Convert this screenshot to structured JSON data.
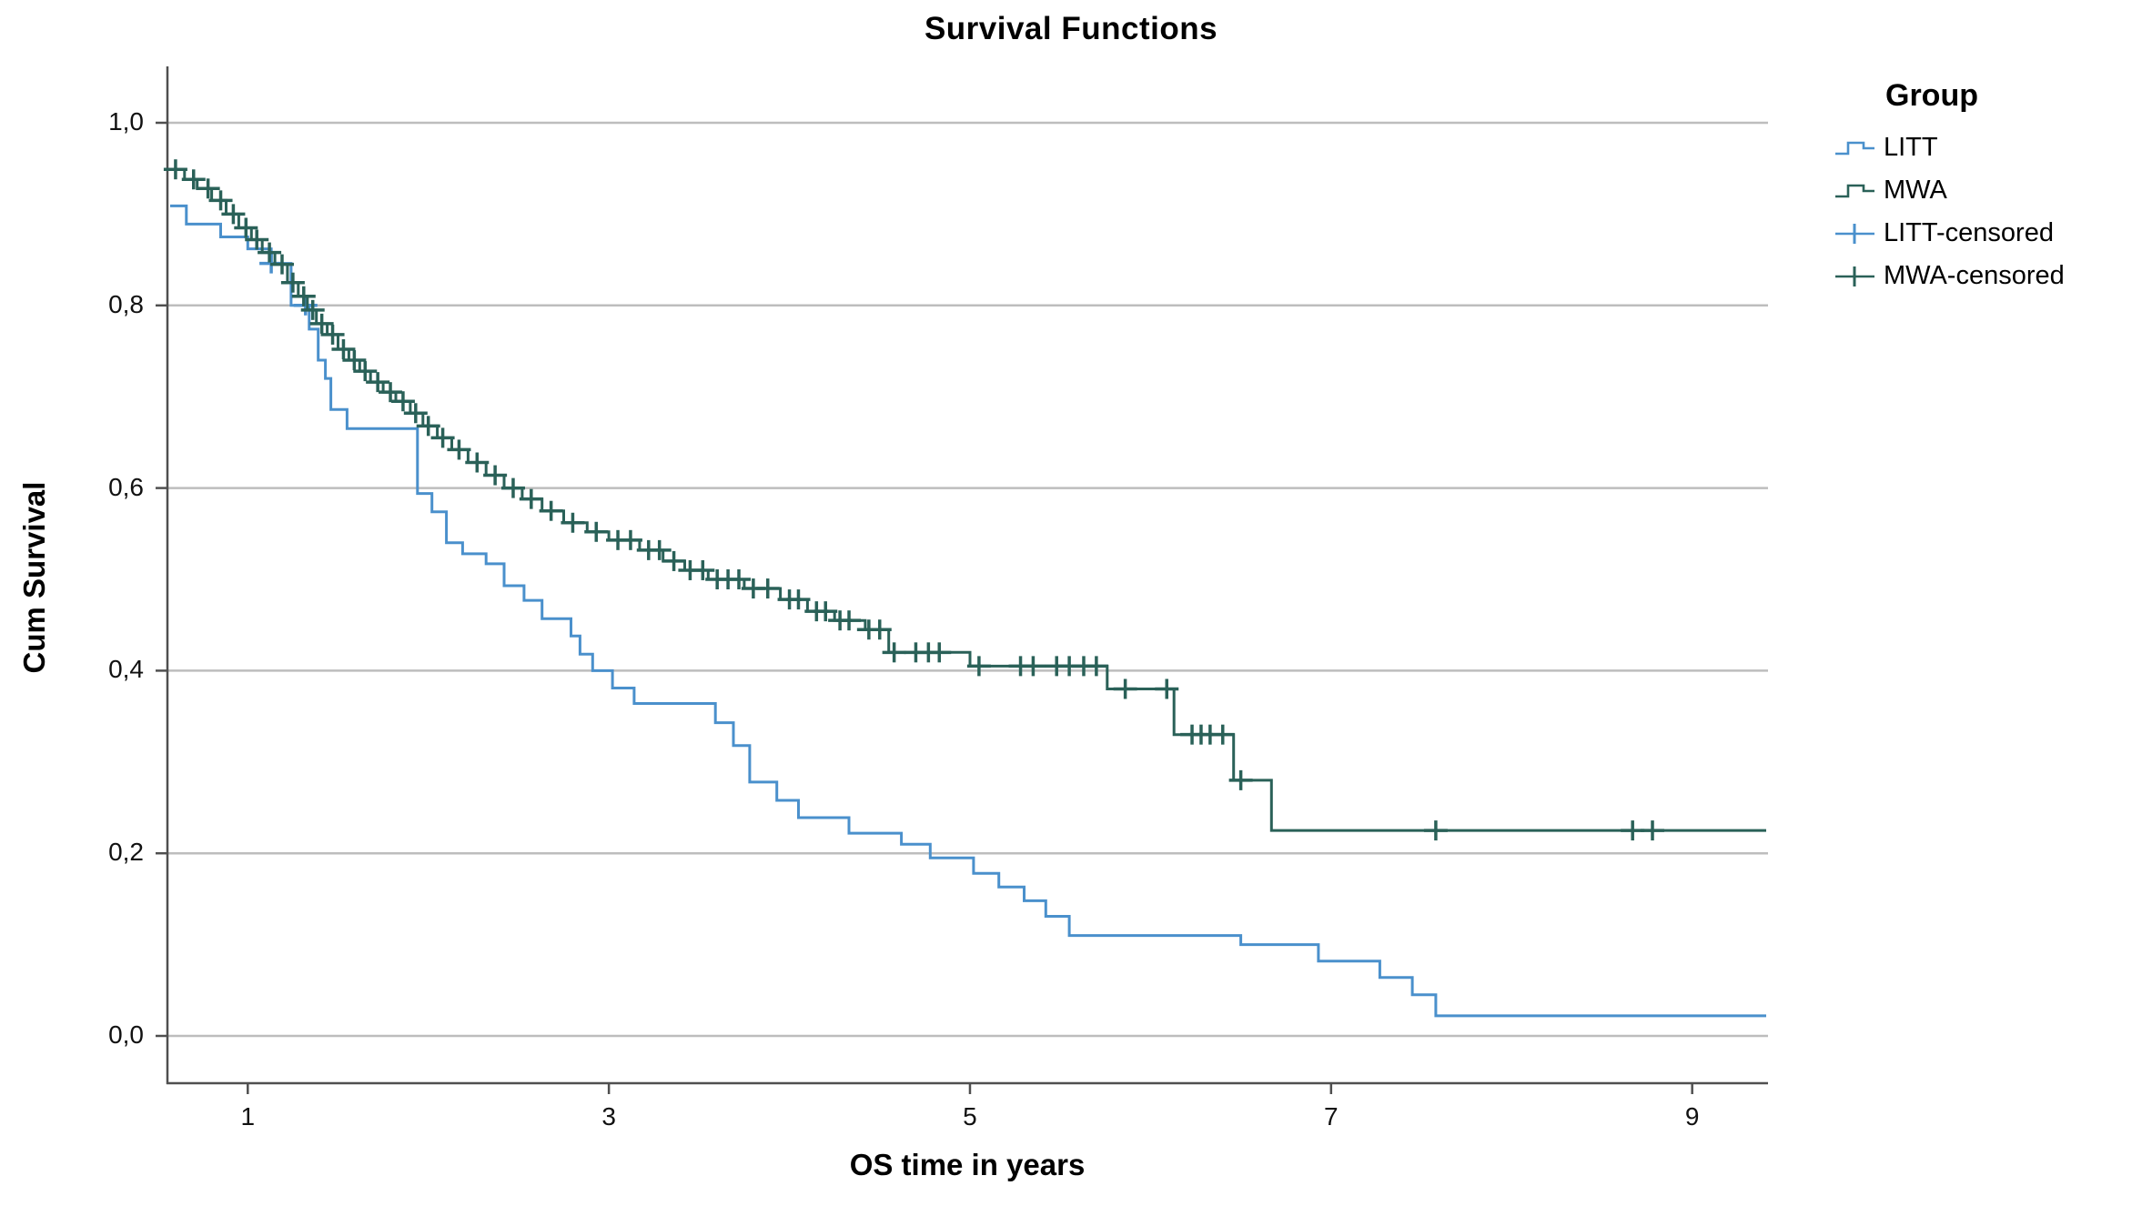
{
  "chart_data": {
    "type": "line",
    "subtype": "kaplan-meier-step",
    "title": "Survival Functions",
    "xlabel": "OS time in years",
    "ylabel": "Cum Survival",
    "x_range": [
      0.55,
      9.42
    ],
    "y_range": [
      -0.05,
      1.06
    ],
    "x_ticks": [
      1,
      3,
      5,
      7,
      9
    ],
    "y_ticks": [
      {
        "label": "0,0",
        "value": 0.0
      },
      {
        "label": "0,2",
        "value": 0.2
      },
      {
        "label": "0,4",
        "value": 0.4
      },
      {
        "label": "0,6",
        "value": 0.6
      },
      {
        "label": "0,8",
        "value": 0.8
      },
      {
        "label": "1,0",
        "value": 1.0
      }
    ],
    "grid": "horizontal",
    "legend_position": "right",
    "legend_title": "Group",
    "colors": {
      "grid": "#bdbdbd",
      "axis": "#4f4f4f",
      "text": "#000000",
      "litt": "#4a90cc",
      "mwa": "#2a6158"
    },
    "series": [
      {
        "name": "LITT",
        "color": "#4a90cc",
        "start": [
          0.57,
          0.909
        ],
        "end_x": 9.41,
        "steps": [
          [
            0.66,
            0.889
          ],
          [
            0.85,
            0.875
          ],
          [
            1.0,
            0.862
          ],
          [
            1.13,
            0.846
          ],
          [
            1.24,
            0.8
          ],
          [
            1.34,
            0.774
          ],
          [
            1.39,
            0.74
          ],
          [
            1.43,
            0.72
          ],
          [
            1.46,
            0.686
          ],
          [
            1.55,
            0.665
          ],
          [
            1.94,
            0.594
          ],
          [
            2.02,
            0.574
          ],
          [
            2.1,
            0.54
          ],
          [
            2.19,
            0.528
          ],
          [
            2.32,
            0.517
          ],
          [
            2.42,
            0.493
          ],
          [
            2.53,
            0.477
          ],
          [
            2.63,
            0.457
          ],
          [
            2.79,
            0.438
          ],
          [
            2.84,
            0.418
          ],
          [
            2.91,
            0.4
          ],
          [
            3.02,
            0.381
          ],
          [
            3.14,
            0.364
          ],
          [
            3.59,
            0.343
          ],
          [
            3.69,
            0.318
          ],
          [
            3.78,
            0.278
          ],
          [
            3.93,
            0.258
          ],
          [
            4.05,
            0.239
          ],
          [
            4.33,
            0.222
          ],
          [
            4.62,
            0.21
          ],
          [
            4.78,
            0.195
          ],
          [
            5.02,
            0.178
          ],
          [
            5.16,
            0.163
          ],
          [
            5.3,
            0.148
          ],
          [
            5.42,
            0.131
          ],
          [
            5.55,
            0.11
          ],
          [
            6.5,
            0.1
          ],
          [
            6.93,
            0.082
          ],
          [
            7.27,
            0.064
          ],
          [
            7.45,
            0.045
          ],
          [
            7.58,
            0.022
          ]
        ],
        "censor_times": [
          1.13,
          1.32
        ]
      },
      {
        "name": "MWA",
        "color": "#2a6158",
        "start": [
          0.57,
          0.949
        ],
        "end_x": 9.41,
        "steps": [
          [
            0.65,
            0.938
          ],
          [
            0.72,
            0.928
          ],
          [
            0.8,
            0.915
          ],
          [
            0.88,
            0.9
          ],
          [
            0.95,
            0.885
          ],
          [
            1.02,
            0.872
          ],
          [
            1.08,
            0.858
          ],
          [
            1.15,
            0.845
          ],
          [
            1.22,
            0.825
          ],
          [
            1.28,
            0.81
          ],
          [
            1.33,
            0.795
          ],
          [
            1.38,
            0.78
          ],
          [
            1.44,
            0.768
          ],
          [
            1.5,
            0.752
          ],
          [
            1.56,
            0.74
          ],
          [
            1.62,
            0.728
          ],
          [
            1.68,
            0.716
          ],
          [
            1.75,
            0.705
          ],
          [
            1.82,
            0.695
          ],
          [
            1.9,
            0.682
          ],
          [
            1.97,
            0.668
          ],
          [
            2.05,
            0.655
          ],
          [
            2.13,
            0.642
          ],
          [
            2.22,
            0.628
          ],
          [
            2.32,
            0.614
          ],
          [
            2.42,
            0.6
          ],
          [
            2.52,
            0.588
          ],
          [
            2.63,
            0.575
          ],
          [
            2.75,
            0.562
          ],
          [
            2.88,
            0.552
          ],
          [
            3.0,
            0.543
          ],
          [
            3.17,
            0.532
          ],
          [
            3.3,
            0.52
          ],
          [
            3.42,
            0.51
          ],
          [
            3.55,
            0.5
          ],
          [
            3.75,
            0.49
          ],
          [
            3.95,
            0.478
          ],
          [
            4.1,
            0.465
          ],
          [
            4.25,
            0.455
          ],
          [
            4.42,
            0.445
          ],
          [
            4.55,
            0.42
          ],
          [
            5.0,
            0.405
          ],
          [
            5.76,
            0.38
          ],
          [
            6.13,
            0.33
          ],
          [
            6.46,
            0.28
          ],
          [
            6.67,
            0.225
          ]
        ],
        "censor_times": [
          0.6,
          0.7,
          0.78,
          0.85,
          0.92,
          0.99,
          1.05,
          1.12,
          1.19,
          1.25,
          1.31,
          1.36,
          1.41,
          1.47,
          1.53,
          1.59,
          1.65,
          1.72,
          1.79,
          1.86,
          1.93,
          2.0,
          2.08,
          2.17,
          2.27,
          2.37,
          2.47,
          2.57,
          2.68,
          2.8,
          2.93,
          3.05,
          3.12,
          3.22,
          3.28,
          3.36,
          3.45,
          3.52,
          3.6,
          3.66,
          3.72,
          3.8,
          3.88,
          4.0,
          4.05,
          4.15,
          4.2,
          4.28,
          4.33,
          4.44,
          4.5,
          4.58,
          4.7,
          4.77,
          4.83,
          5.05,
          5.28,
          5.35,
          5.48,
          5.55,
          5.63,
          5.7,
          5.86,
          6.09,
          6.23,
          6.28,
          6.33,
          6.4,
          6.5,
          7.58,
          8.67,
          8.78
        ]
      }
    ],
    "legend_items": [
      {
        "label": "LITT",
        "color": "#4a90cc",
        "glyph": "step"
      },
      {
        "label": "MWA",
        "color": "#2a6158",
        "glyph": "step"
      },
      {
        "label": "LITT-censored",
        "color": "#4a90cc",
        "glyph": "plus"
      },
      {
        "label": "MWA-censored",
        "color": "#2a6158",
        "glyph": "plus"
      }
    ]
  }
}
